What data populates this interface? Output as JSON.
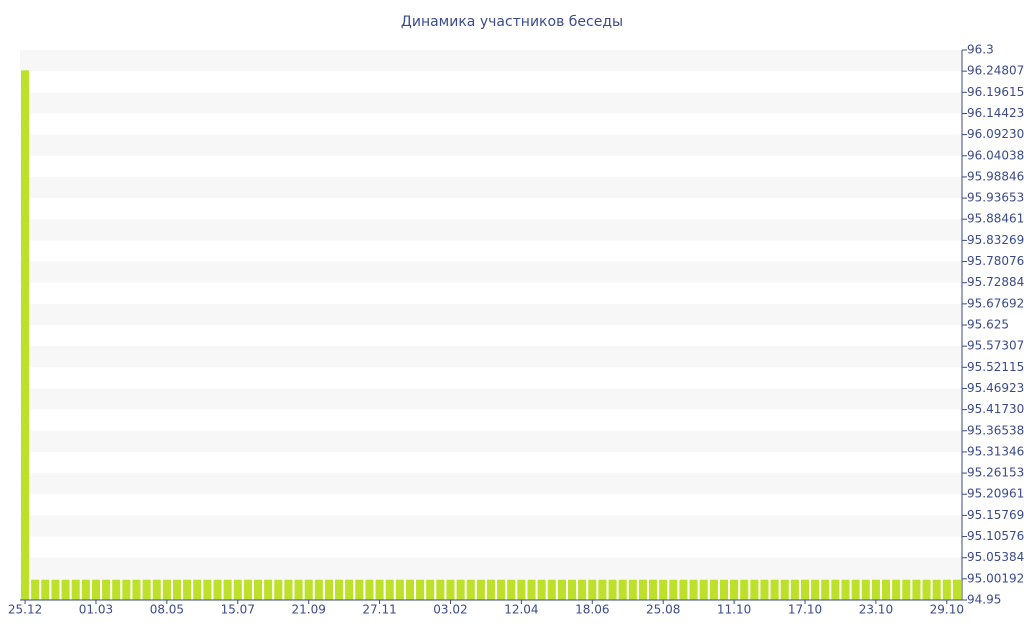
{
  "chart_data": {
    "type": "bar",
    "title": "Динамика участников беседы",
    "categories": [
      "25.12",
      null,
      null,
      null,
      null,
      null,
      null,
      "01.03",
      null,
      null,
      null,
      null,
      null,
      null,
      "08.05",
      null,
      null,
      null,
      null,
      null,
      null,
      "15.07",
      null,
      null,
      null,
      null,
      null,
      null,
      "21.09",
      null,
      null,
      null,
      null,
      null,
      null,
      "27.11",
      null,
      null,
      null,
      null,
      null,
      null,
      "03.02",
      null,
      null,
      null,
      null,
      null,
      null,
      "12.04",
      null,
      null,
      null,
      null,
      null,
      null,
      "18.06",
      null,
      null,
      null,
      null,
      null,
      null,
      "25.08",
      null,
      null,
      null,
      null,
      null,
      null,
      "11.10",
      null,
      null,
      null,
      null,
      null,
      null,
      "17.10",
      null,
      null,
      null,
      null,
      null,
      null,
      "23.10",
      null,
      null,
      null,
      null,
      null,
      null,
      "29.10",
      null
    ],
    "values": [
      96.25,
      95,
      95,
      95,
      95,
      95,
      95,
      95,
      95,
      95,
      95,
      95,
      95,
      95,
      95,
      95,
      95,
      95,
      95,
      95,
      95,
      95,
      95,
      95,
      95,
      95,
      95,
      95,
      95,
      95,
      95,
      95,
      95,
      95,
      95,
      95,
      95,
      95,
      95,
      95,
      95,
      95,
      95,
      95,
      95,
      95,
      95,
      95,
      95,
      95,
      95,
      95,
      95,
      95,
      95,
      95,
      95,
      95,
      95,
      95,
      95,
      95,
      95,
      95,
      95,
      95,
      95,
      95,
      95,
      95,
      95,
      95,
      95,
      95,
      95,
      95,
      95,
      95,
      95,
      95,
      95,
      95,
      95,
      95,
      95,
      95,
      95,
      95,
      95,
      95,
      95,
      95,
      95
    ],
    "color": "#bde02a",
    "ylim": [
      94.95,
      96.3
    ],
    "yticks": [
      96.3,
      96.24807,
      96.19615,
      96.14423,
      {
        "value": 96.0923,
        "label": "96.09230"
      },
      96.04038,
      95.98846,
      95.93653,
      95.88461,
      95.83269,
      95.78076,
      95.72884,
      95.67692,
      95.625,
      95.57307,
      95.52115,
      95.46923,
      {
        "value": 95.4173,
        "label": "95.41730"
      },
      95.36538,
      95.31346,
      95.26153,
      95.20961,
      95.15769,
      95.10576,
      95.05384,
      95.00192,
      94.95
    ],
    "grid": true
  }
}
